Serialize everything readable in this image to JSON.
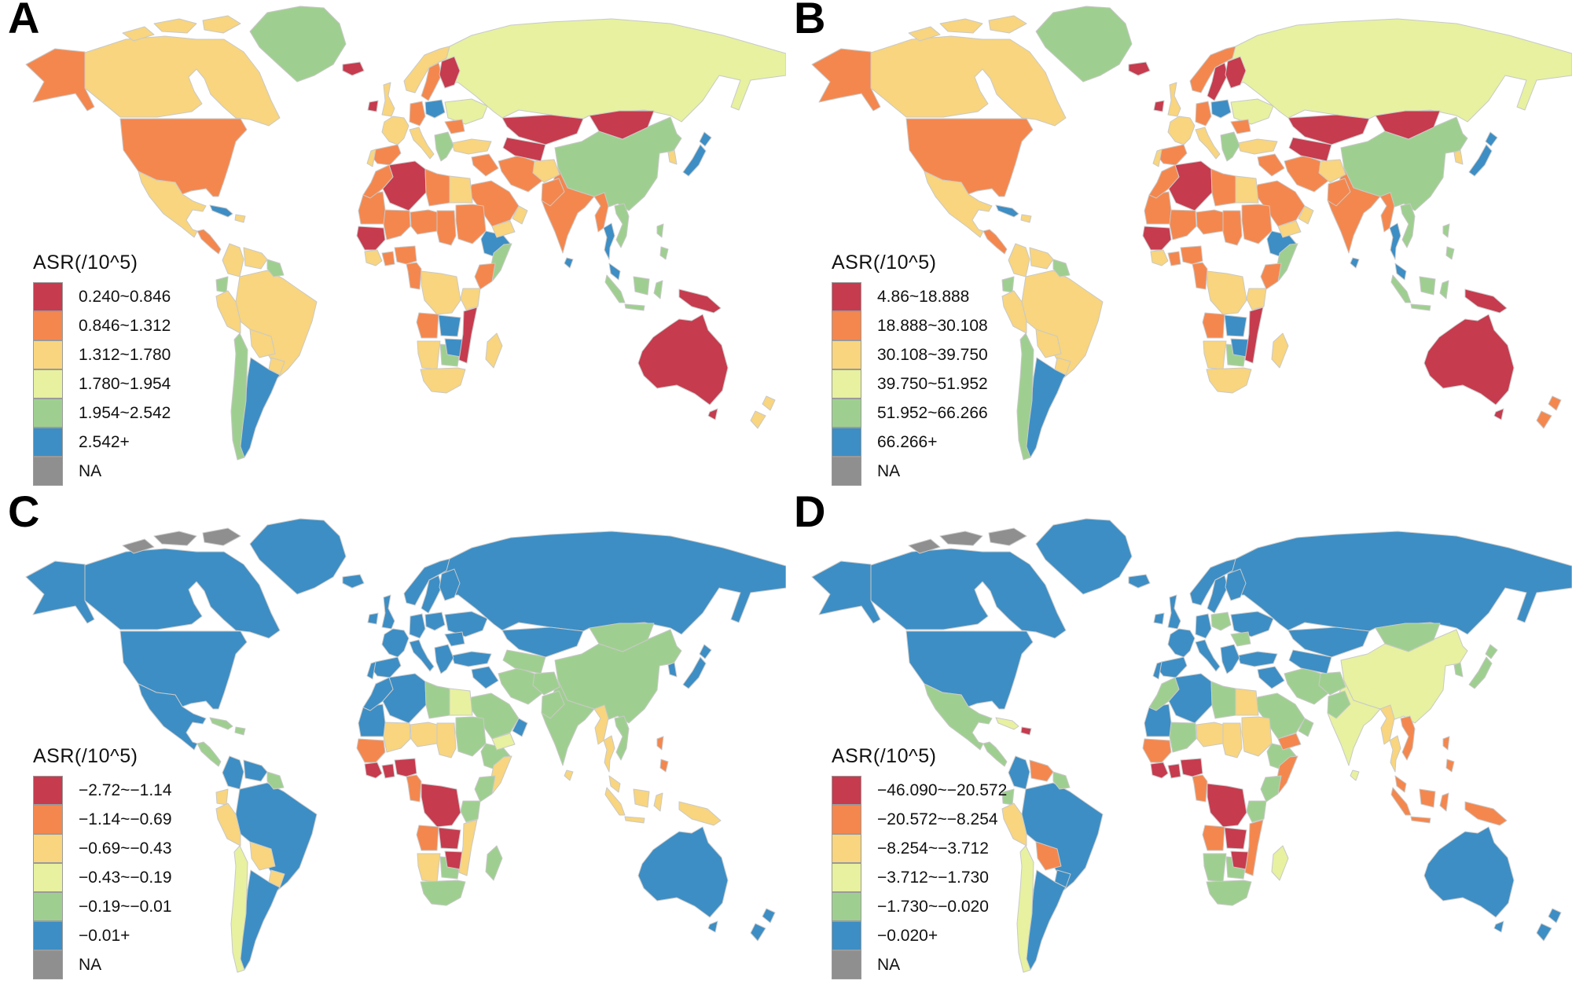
{
  "figure": {
    "background": "#FFFFFF"
  },
  "palette": {
    "r": "#C63B4E",
    "o": "#F4874E",
    "k": "#F8D57E",
    "y": "#E7F1A0",
    "g": "#9FCF90",
    "b": "#3D8EC4",
    "n": "#8F8F8F",
    "border": "#C9C9C9",
    "text": "#111111"
  },
  "map_type": "world-choropleth",
  "panels": [
    {
      "label": "A",
      "legend_title": "ASR(/10^5)",
      "classes": [
        {
          "label": "0.240~0.846",
          "color": "r"
        },
        {
          "label": "0.846~1.312",
          "color": "o"
        },
        {
          "label": "1.312~1.780",
          "color": "k"
        },
        {
          "label": "1.780~1.954",
          "color": "y"
        },
        {
          "label": "1.954~2.542",
          "color": "g"
        },
        {
          "label": "2.542+",
          "color": "b"
        },
        {
          "label": "NA",
          "color": "n"
        }
      ],
      "regions": {
        "russia": "y",
        "arcticislands": "k",
        "canada": "k",
        "greenland": "g",
        "usa": "o",
        "alaska": "o",
        "mexico": "k",
        "brazil": "k",
        "china": "g",
        "australia": "r",
        "kazakhstan": "r",
        "mongolia": "r",
        "india": "o",
        "saudi": "o",
        "algeria": "r",
        "libya": "o",
        "egypt": "k",
        "sudan": "o",
        "chad": "o",
        "niger": "o",
        "mali": "o",
        "mauritania": "o",
        "morocco": "o",
        "ethiopia": "b",
        "somalia": "g",
        "drc": "k",
        "angola": "o",
        "namibia": "k",
        "southafrica": "k",
        "botswana": "g",
        "zimbabwe": "b",
        "zambia": "b",
        "mozambique": "r",
        "tanzania": "k",
        "kenya": "o",
        "senegal": "r",
        "ivorycoast": "k",
        "ghana": "o",
        "nigeria": "o",
        "cameroon": "o",
        "madagascar": "k",
        "iran": "o",
        "iraq": "o",
        "turkey": "k",
        "afghanistan": "k",
        "pakistan": "o",
        "yemen": "k",
        "oman": "k",
        "centralasia": "r",
        "ukraine": "y",
        "romania": "o",
        "poland": "b",
        "germany": "o",
        "france": "k",
        "spain": "o",
        "portugal": "k",
        "italy": "k",
        "balkans": "g",
        "norway": "k",
        "sweden": "o",
        "finland": "r",
        "uk": "k",
        "ireland": "r",
        "iceland": "r",
        "colombia": "k",
        "venezuela": "k",
        "guyanas": "g",
        "ecuador": "g",
        "peru": "k",
        "bolivia": "k",
        "paraguay": "k",
        "argentina": "b",
        "chile": "g",
        "centralamerica": "o",
        "cuba": "b",
        "hispaniola": "k",
        "korea": "k",
        "japan": "b",
        "myanmar": "o",
        "thailand": "b",
        "vietnam": "g",
        "malaysia": "b",
        "indonesia": "g",
        "philippines": "g",
        "png": "r",
        "srilanka": "b",
        "nz": "k"
      }
    },
    {
      "label": "B",
      "legend_title": "ASR(/10^5)",
      "classes": [
        {
          "label": "4.86~18.888",
          "color": "r"
        },
        {
          "label": "18.888~30.108",
          "color": "o"
        },
        {
          "label": "30.108~39.750",
          "color": "k"
        },
        {
          "label": "39.750~51.952",
          "color": "y"
        },
        {
          "label": "51.952~66.266",
          "color": "g"
        },
        {
          "label": "66.266+",
          "color": "b"
        },
        {
          "label": "NA",
          "color": "n"
        }
      ],
      "regions": {
        "russia": "y",
        "arcticislands": "k",
        "canada": "k",
        "greenland": "g",
        "usa": "o",
        "alaska": "o",
        "mexico": "k",
        "brazil": "k",
        "china": "g",
        "australia": "r",
        "kazakhstan": "r",
        "mongolia": "r",
        "india": "o",
        "saudi": "o",
        "algeria": "r",
        "libya": "o",
        "egypt": "k",
        "sudan": "o",
        "chad": "o",
        "niger": "o",
        "mali": "o",
        "mauritania": "o",
        "morocco": "o",
        "ethiopia": "b",
        "somalia": "g",
        "drc": "k",
        "angola": "o",
        "namibia": "k",
        "southafrica": "k",
        "botswana": "g",
        "zimbabwe": "b",
        "zambia": "b",
        "mozambique": "r",
        "tanzania": "k",
        "kenya": "o",
        "senegal": "r",
        "ivorycoast": "k",
        "ghana": "o",
        "nigeria": "o",
        "cameroon": "o",
        "madagascar": "k",
        "iran": "o",
        "iraq": "o",
        "turkey": "k",
        "afghanistan": "k",
        "pakistan": "o",
        "yemen": "k",
        "oman": "k",
        "centralasia": "r",
        "ukraine": "y",
        "romania": "o",
        "poland": "b",
        "germany": "o",
        "france": "k",
        "spain": "o",
        "portugal": "k",
        "italy": "k",
        "balkans": "g",
        "norway": "o",
        "sweden": "r",
        "finland": "r",
        "uk": "k",
        "ireland": "r",
        "iceland": "r",
        "colombia": "k",
        "venezuela": "k",
        "guyanas": "g",
        "ecuador": "g",
        "peru": "k",
        "bolivia": "k",
        "paraguay": "k",
        "argentina": "b",
        "chile": "g",
        "centralamerica": "o",
        "cuba": "b",
        "hispaniola": "k",
        "korea": "k",
        "japan": "b",
        "myanmar": "o",
        "thailand": "b",
        "vietnam": "g",
        "malaysia": "b",
        "indonesia": "g",
        "philippines": "g",
        "png": "r",
        "srilanka": "b",
        "nz": "o"
      }
    },
    {
      "label": "C",
      "legend_title": "ASR(/10^5)",
      "classes": [
        {
          "label": "−2.72~−1.14",
          "color": "r"
        },
        {
          "label": "−1.14~−0.69",
          "color": "o"
        },
        {
          "label": "−0.69~−0.43",
          "color": "k"
        },
        {
          "label": "−0.43~−0.19",
          "color": "y"
        },
        {
          "label": "−0.19~−0.01",
          "color": "g"
        },
        {
          "label": "−0.01+",
          "color": "b"
        },
        {
          "label": "NA",
          "color": "n"
        }
      ],
      "regions": {
        "russia": "b",
        "arcticislands": "n",
        "canada": "b",
        "greenland": "b",
        "usa": "b",
        "alaska": "b",
        "mexico": "b",
        "brazil": "b",
        "china": "g",
        "australia": "b",
        "kazakhstan": "b",
        "mongolia": "g",
        "india": "g",
        "saudi": "g",
        "algeria": "b",
        "libya": "g",
        "egypt": "y",
        "sudan": "g",
        "chad": "k",
        "niger": "k",
        "mali": "k",
        "mauritania": "b",
        "morocco": "b",
        "ethiopia": "g",
        "somalia": "k",
        "drc": "r",
        "angola": "o",
        "namibia": "k",
        "southafrica": "g",
        "botswana": "g",
        "zimbabwe": "r",
        "zambia": "r",
        "mozambique": "k",
        "tanzania": "g",
        "kenya": "g",
        "senegal": "o",
        "ivorycoast": "r",
        "ghana": "r",
        "nigeria": "r",
        "cameroon": "o",
        "madagascar": "g",
        "iran": "g",
        "iraq": "b",
        "turkey": "b",
        "afghanistan": "g",
        "pakistan": "g",
        "yemen": "y",
        "oman": "b",
        "centralasia": "g",
        "ukraine": "b",
        "romania": "b",
        "poland": "b",
        "germany": "b",
        "france": "b",
        "spain": "b",
        "portugal": "b",
        "italy": "b",
        "balkans": "b",
        "norway": "b",
        "sweden": "b",
        "finland": "b",
        "uk": "b",
        "ireland": "b",
        "iceland": "b",
        "colombia": "b",
        "venezuela": "b",
        "guyanas": "g",
        "ecuador": "k",
        "peru": "k",
        "bolivia": "k",
        "paraguay": "k",
        "argentina": "b",
        "chile": "y",
        "centralamerica": "g",
        "cuba": "g",
        "hispaniola": "g",
        "korea": "b",
        "japan": "b",
        "myanmar": "k",
        "thailand": "k",
        "vietnam": "g",
        "malaysia": "k",
        "indonesia": "k",
        "philippines": "o",
        "png": "k",
        "srilanka": "k",
        "nz": "b"
      }
    },
    {
      "label": "D",
      "legend_title": "ASR(/10^5)",
      "classes": [
        {
          "label": "−46.090~−20.572",
          "color": "r"
        },
        {
          "label": "−20.572~−8.254",
          "color": "o"
        },
        {
          "label": "−8.254~−3.712",
          "color": "k"
        },
        {
          "label": "−3.712~−1.730",
          "color": "y"
        },
        {
          "label": "−1.730~−0.020",
          "color": "g"
        },
        {
          "label": "−0.020+",
          "color": "b"
        },
        {
          "label": "NA",
          "color": "n"
        }
      ],
      "regions": {
        "russia": "b",
        "arcticislands": "n",
        "canada": "b",
        "greenland": "b",
        "usa": "b",
        "alaska": "b",
        "mexico": "g",
        "brazil": "b",
        "china": "y",
        "australia": "b",
        "kazakhstan": "b",
        "mongolia": "g",
        "india": "y",
        "saudi": "g",
        "algeria": "b",
        "libya": "g",
        "egypt": "k",
        "sudan": "k",
        "chad": "k",
        "niger": "k",
        "mali": "g",
        "mauritania": "b",
        "morocco": "g",
        "ethiopia": "g",
        "somalia": "o",
        "drc": "r",
        "angola": "o",
        "namibia": "g",
        "southafrica": "g",
        "botswana": "g",
        "zimbabwe": "r",
        "zambia": "r",
        "mozambique": "o",
        "tanzania": "g",
        "kenya": "g",
        "senegal": "o",
        "ivorycoast": "r",
        "ghana": "r",
        "nigeria": "r",
        "cameroon": "o",
        "madagascar": "y",
        "iran": "g",
        "iraq": "b",
        "turkey": "b",
        "afghanistan": "g",
        "pakistan": "g",
        "yemen": "o",
        "oman": "g",
        "centralasia": "b",
        "ukraine": "b",
        "romania": "g",
        "poland": "g",
        "germany": "b",
        "france": "b",
        "spain": "b",
        "portugal": "b",
        "italy": "b",
        "balkans": "b",
        "norway": "b",
        "sweden": "b",
        "finland": "b",
        "uk": "b",
        "ireland": "b",
        "iceland": "b",
        "colombia": "b",
        "venezuela": "o",
        "guyanas": "g",
        "ecuador": "g",
        "peru": "k",
        "bolivia": "o",
        "paraguay": "b",
        "argentina": "b",
        "chile": "y",
        "centralamerica": "g",
        "cuba": "y",
        "hispaniola": "r",
        "korea": "g",
        "japan": "g",
        "myanmar": "k",
        "thailand": "k",
        "vietnam": "o",
        "malaysia": "o",
        "indonesia": "o",
        "philippines": "o",
        "png": "o",
        "srilanka": "y",
        "nz": "b"
      }
    }
  ]
}
